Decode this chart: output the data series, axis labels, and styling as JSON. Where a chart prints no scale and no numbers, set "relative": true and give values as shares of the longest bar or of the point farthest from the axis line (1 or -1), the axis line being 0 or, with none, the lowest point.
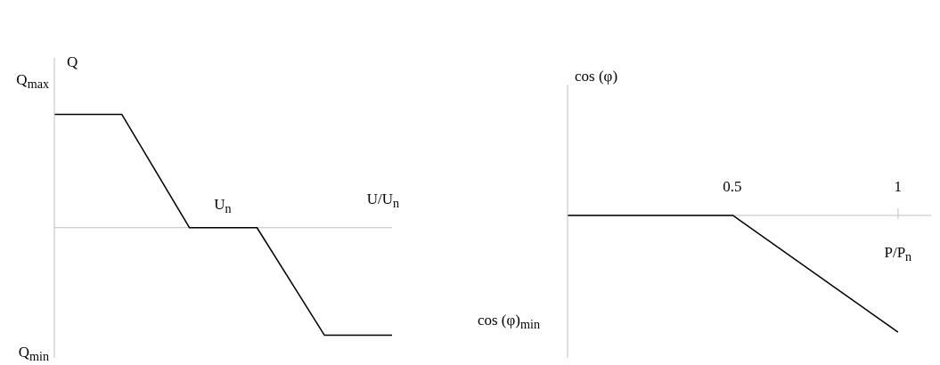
{
  "chart_data": [
    {
      "type": "line",
      "relative": true,
      "ylabel": "Q",
      "xlabel": "U/U$_{n}$",
      "categories": [
        null,
        null,
        null,
        null,
        null,
        null
      ],
      "series": [
        {
          "color": "#000000",
          "values": [
            1,
            1,
            0,
            0,
            -0.95,
            -0.95
          ]
        }
      ],
      "annotations": [
        "Q$_{max}$",
        "Q$_{min}$",
        "U$_{n}$"
      ]
    },
    {
      "type": "line",
      "relative": true,
      "ylabel": "cos (φ)",
      "xlabel": "P/P$_{n}$",
      "x": [
        0,
        0.5,
        1
      ],
      "xlim": [
        0,
        1.1
      ],
      "xticks": [
        0.5,
        1
      ],
      "series": [
        {
          "color": "#000000",
          "values": [
            0,
            0,
            -1
          ]
        }
      ],
      "annotations": [
        "cos (φ)$_{min}$"
      ]
    }
  ]
}
